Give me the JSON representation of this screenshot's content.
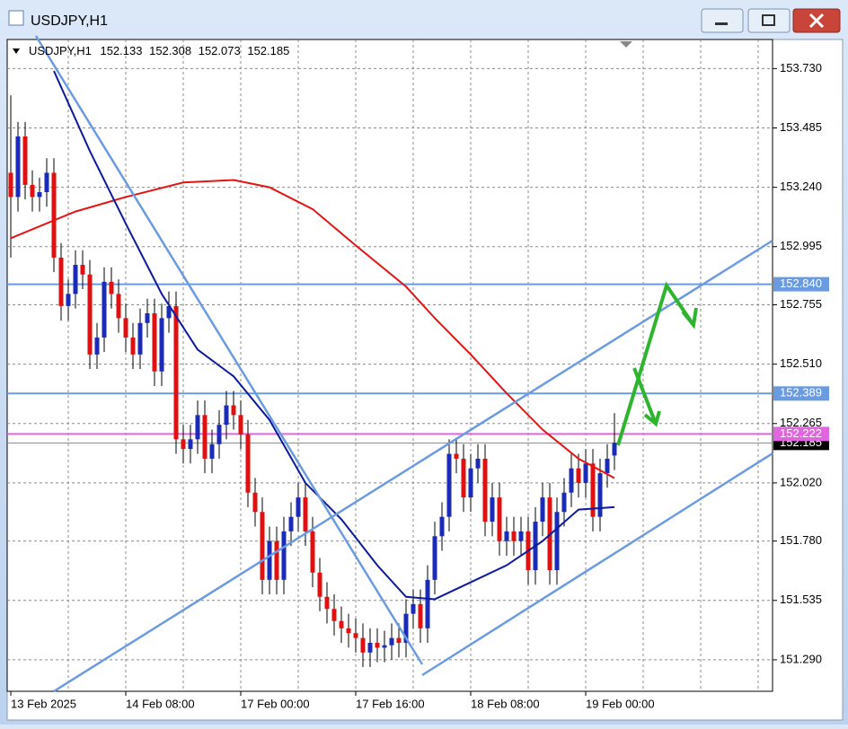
{
  "window": {
    "title": "USDJPY,H1"
  },
  "chart_data": {
    "type": "candlestick",
    "symbol": "USDJPY,H1",
    "open": [
      153.3,
      153.2,
      153.45,
      153.25,
      153.2,
      153.22,
      153.3,
      152.95,
      152.75,
      152.8,
      152.92,
      152.88,
      152.55,
      152.62,
      152.85,
      152.8,
      152.7,
      152.62,
      152.55,
      152.68,
      152.72,
      152.48,
      152.7,
      152.75,
      152.2,
      152.16,
      152.2,
      152.3,
      152.12,
      152.18,
      152.26,
      152.34,
      152.3,
      152.22,
      151.98,
      151.9,
      151.62,
      151.78,
      151.62,
      151.82,
      151.88,
      151.96,
      151.82,
      151.65,
      151.55,
      151.5,
      151.45,
      151.42,
      151.4,
      151.38,
      151.32,
      151.36,
      151.34,
      151.35,
      151.38,
      151.36,
      151.48,
      151.52,
      151.42,
      151.62,
      151.8,
      151.88,
      152.14,
      152.12,
      151.96,
      152.08,
      152.12,
      151.86,
      151.96,
      151.78,
      151.82,
      151.78,
      151.82,
      151.66,
      151.86,
      151.96,
      151.66,
      151.9,
      151.98,
      152.08,
      152.02,
      152.1,
      151.88,
      152.06,
      152.133
    ],
    "high": [
      153.62,
      153.51,
      153.51,
      153.31,
      153.28,
      153.36,
      153.36,
      153.01,
      152.86,
      152.98,
      152.98,
      152.94,
      152.68,
      152.91,
      152.91,
      152.86,
      152.76,
      152.68,
      152.74,
      152.78,
      152.78,
      152.76,
      152.81,
      152.81,
      152.26,
      152.26,
      152.36,
      152.36,
      152.24,
      152.32,
      152.4,
      152.4,
      152.36,
      152.28,
      152.04,
      151.96,
      151.84,
      151.84,
      151.88,
      151.94,
      152.02,
      152.02,
      151.88,
      151.71,
      151.61,
      151.56,
      151.51,
      151.48,
      151.46,
      151.44,
      151.42,
      151.42,
      151.41,
      151.44,
      151.44,
      151.54,
      151.58,
      151.58,
      151.68,
      151.86,
      151.94,
      152.2,
      152.2,
      152.18,
      152.14,
      152.18,
      152.18,
      152.02,
      152.02,
      151.88,
      151.88,
      151.88,
      151.88,
      151.92,
      152.02,
      152.02,
      151.96,
      152.04,
      152.14,
      152.14,
      152.16,
      152.16,
      152.12,
      152.18,
      152.308
    ],
    "low": [
      152.95,
      153.14,
      153.19,
      153.14,
      153.14,
      153.16,
      152.89,
      152.69,
      152.69,
      152.74,
      152.82,
      152.49,
      152.49,
      152.56,
      152.74,
      152.64,
      152.56,
      152.49,
      152.49,
      152.62,
      152.42,
      152.42,
      152.64,
      152.14,
      152.1,
      152.1,
      152.14,
      152.06,
      152.06,
      152.12,
      152.2,
      152.24,
      152.16,
      151.92,
      151.84,
      151.56,
      151.56,
      151.56,
      151.56,
      151.76,
      151.82,
      151.76,
      151.59,
      151.49,
      151.44,
      151.39,
      151.36,
      151.34,
      151.32,
      151.26,
      151.26,
      151.28,
      151.28,
      151.29,
      151.3,
      151.3,
      151.42,
      151.36,
      151.36,
      151.56,
      151.74,
      151.82,
      152.06,
      151.9,
      151.9,
      152.02,
      151.8,
      151.8,
      151.72,
      151.72,
      151.72,
      151.72,
      151.6,
      151.6,
      151.8,
      151.6,
      151.6,
      151.84,
      151.92,
      151.96,
      151.96,
      151.82,
      151.82,
      152.0,
      152.073
    ],
    "close": [
      153.2,
      153.45,
      153.25,
      153.2,
      153.22,
      153.3,
      152.95,
      152.75,
      152.8,
      152.92,
      152.88,
      152.55,
      152.62,
      152.85,
      152.8,
      152.7,
      152.62,
      152.55,
      152.68,
      152.72,
      152.48,
      152.7,
      152.75,
      152.2,
      152.16,
      152.2,
      152.3,
      152.12,
      152.18,
      152.26,
      152.34,
      152.3,
      152.22,
      151.98,
      151.9,
      151.62,
      151.78,
      151.62,
      151.82,
      151.88,
      151.96,
      151.82,
      151.65,
      151.55,
      151.5,
      151.45,
      151.42,
      151.4,
      151.38,
      151.32,
      151.36,
      151.34,
      151.35,
      151.38,
      151.36,
      151.48,
      151.52,
      151.42,
      151.62,
      151.8,
      151.88,
      152.14,
      152.12,
      151.96,
      152.08,
      152.12,
      151.86,
      151.96,
      151.78,
      151.82,
      151.78,
      151.82,
      151.66,
      151.86,
      151.96,
      151.66,
      151.9,
      151.98,
      152.08,
      152.02,
      152.1,
      151.88,
      152.06,
      152.12,
      152.185
    ],
    "bull_color": "#1a2bb8",
    "bear_color": "#e01010",
    "lines": [
      {
        "color": "#e31414",
        "x": [
          0,
          9,
          16,
          24,
          31,
          36,
          42,
          48,
          55,
          59,
          64,
          69,
          74,
          79,
          84
        ],
        "values": [
          153.03,
          153.14,
          153.2,
          153.26,
          153.27,
          153.24,
          153.15,
          153.0,
          152.83,
          152.7,
          152.55,
          152.39,
          152.24,
          152.12,
          152.04
        ]
      },
      {
        "color": "#0d1a9e",
        "x": [
          6,
          11,
          16,
          21,
          26,
          31,
          36,
          41,
          46,
          51,
          55,
          59,
          64,
          69,
          74,
          79,
          84
        ],
        "values": [
          153.72,
          153.39,
          153.09,
          152.8,
          152.57,
          152.46,
          152.28,
          152.02,
          151.87,
          151.68,
          151.55,
          151.54,
          151.61,
          151.68,
          151.78,
          151.91,
          151.92
        ]
      }
    ],
    "levels": [
      {
        "value": 152.84,
        "label": "152.840",
        "color": "#6a9be0"
      },
      {
        "value": 152.389,
        "color": "#6a9be0"
      },
      {
        "value": 152.222,
        "color": "#e066e0"
      },
      {
        "value": 152.185,
        "color": "#888888"
      }
    ],
    "ylim": [
      151.16,
      153.85
    ],
    "yticks": [
      {
        "value": 153.73,
        "label": "153.730"
      },
      153.485,
      {
        "value": 153.24,
        "label": "153.240"
      },
      152.995,
      152.755,
      {
        "value": 152.51,
        "label": "152.510"
      },
      152.265,
      {
        "value": 152.02,
        "label": "152.020"
      },
      {
        "value": 151.78,
        "label": "151.780"
      },
      151.535,
      {
        "value": 151.29,
        "label": "151.290"
      }
    ],
    "xticks": [
      {
        "value": 0,
        "label": "13 Feb 2025"
      },
      {
        "value": 16,
        "label": "14 Feb 08:00"
      },
      {
        "value": 32,
        "label": "17 Feb 00:00"
      },
      {
        "value": 48,
        "label": "17 Feb 16:00"
      },
      {
        "value": 64,
        "label": "18 Feb 08:00"
      },
      {
        "value": 80,
        "label": "19 Feb 00:00"
      }
    ],
    "grid": true
  }
}
